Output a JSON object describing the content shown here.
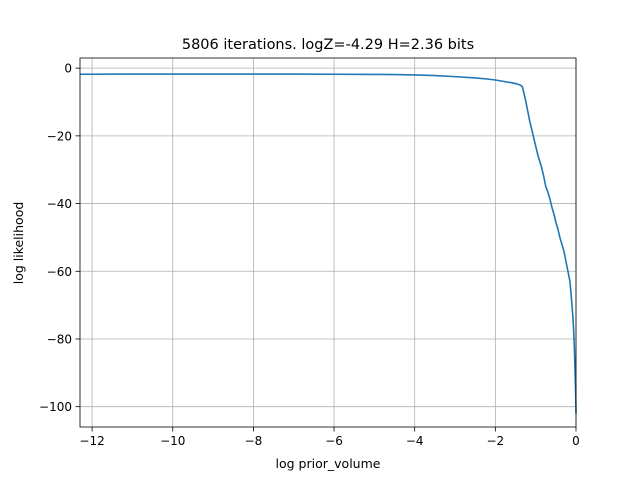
{
  "chart_data": {
    "type": "line",
    "title": "5806 iterations. logZ=-4.29 H=2.36 bits",
    "xlabel": "log prior_volume",
    "ylabel": "log likelihood",
    "xlim": [
      -12.3,
      0.0
    ],
    "ylim": [
      -106.0,
      3.0
    ],
    "xticks": [
      -12,
      -10,
      -8,
      -6,
      -4,
      -2,
      0
    ],
    "yticks": [
      0,
      -20,
      -40,
      -60,
      -80,
      -100
    ],
    "xtick_labels": [
      "−12",
      "−10",
      "−8",
      "−6",
      "−4",
      "−2",
      "0"
    ],
    "ytick_labels": [
      "0",
      "−20",
      "−40",
      "−60",
      "−80",
      "−100"
    ],
    "grid": true,
    "series": [
      {
        "color": "#1f77b4",
        "x": [
          -12.3,
          -11.0,
          -10.0,
          -9.0,
          -8.0,
          -7.0,
          -6.0,
          -5.0,
          -4.5,
          -4.0,
          -3.5,
          -3.0,
          -2.5,
          -2.2,
          -2.0,
          -1.8,
          -1.6,
          -1.45,
          -1.38,
          -1.33,
          -1.3,
          -1.25,
          -1.2,
          -1.15,
          -1.1,
          -1.05,
          -1.0,
          -0.95,
          -0.9,
          -0.85,
          -0.8,
          -0.75,
          -0.7,
          -0.65,
          -0.6,
          -0.55,
          -0.5,
          -0.45,
          -0.4,
          -0.35,
          -0.3,
          -0.25,
          -0.2,
          -0.15,
          -0.12,
          -0.1,
          -0.08,
          -0.06,
          -0.05,
          -0.04,
          -0.03,
          -0.02,
          -0.01,
          -0.005,
          0.0
        ],
        "y": [
          -1.8,
          -1.75,
          -1.75,
          -1.75,
          -1.75,
          -1.75,
          -1.8,
          -1.85,
          -1.9,
          -2.0,
          -2.2,
          -2.5,
          -2.9,
          -3.2,
          -3.5,
          -3.9,
          -4.3,
          -4.7,
          -5.0,
          -5.5,
          -7.0,
          -9.5,
          -12.5,
          -15.5,
          -18.0,
          -20.5,
          -23.0,
          -25.5,
          -27.5,
          -29.5,
          -32.0,
          -35.0,
          -36.5,
          -38.5,
          -41.0,
          -43.0,
          -45.5,
          -47.5,
          -50.0,
          -52.0,
          -54.0,
          -57.0,
          -60.0,
          -63.0,
          -67.0,
          -70.0,
          -73.0,
          -77.0,
          -80.0,
          -83.0,
          -87.0,
          -91.0,
          -95.0,
          -98.5,
          -102.0
        ]
      }
    ]
  }
}
